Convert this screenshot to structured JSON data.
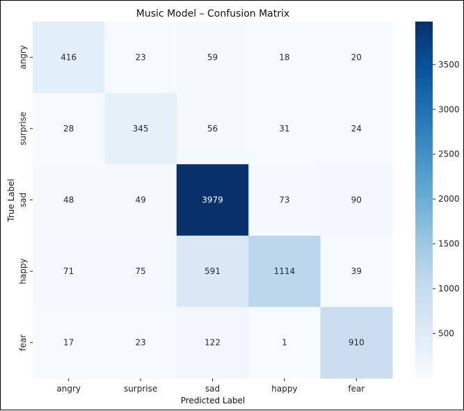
{
  "chart_data": {
    "type": "heatmap",
    "title": "Music Model – Confusion Matrix",
    "xlabel": "Predicted Label",
    "ylabel": "True Label",
    "x_categories": [
      "angry",
      "surprise",
      "sad",
      "happy",
      "fear"
    ],
    "y_categories": [
      "angry",
      "surprise",
      "sad",
      "happy",
      "fear"
    ],
    "values": [
      [
        416,
        23,
        59,
        18,
        20
      ],
      [
        28,
        345,
        56,
        31,
        24
      ],
      [
        48,
        49,
        3979,
        73,
        90
      ],
      [
        71,
        75,
        591,
        1114,
        39
      ],
      [
        17,
        23,
        122,
        1,
        910
      ]
    ],
    "colormap": "Blues",
    "colorbar": {
      "vmin": 1,
      "vmax": 3979,
      "ticks": [
        500,
        1000,
        1500,
        2000,
        2500,
        3000,
        3500
      ]
    }
  }
}
